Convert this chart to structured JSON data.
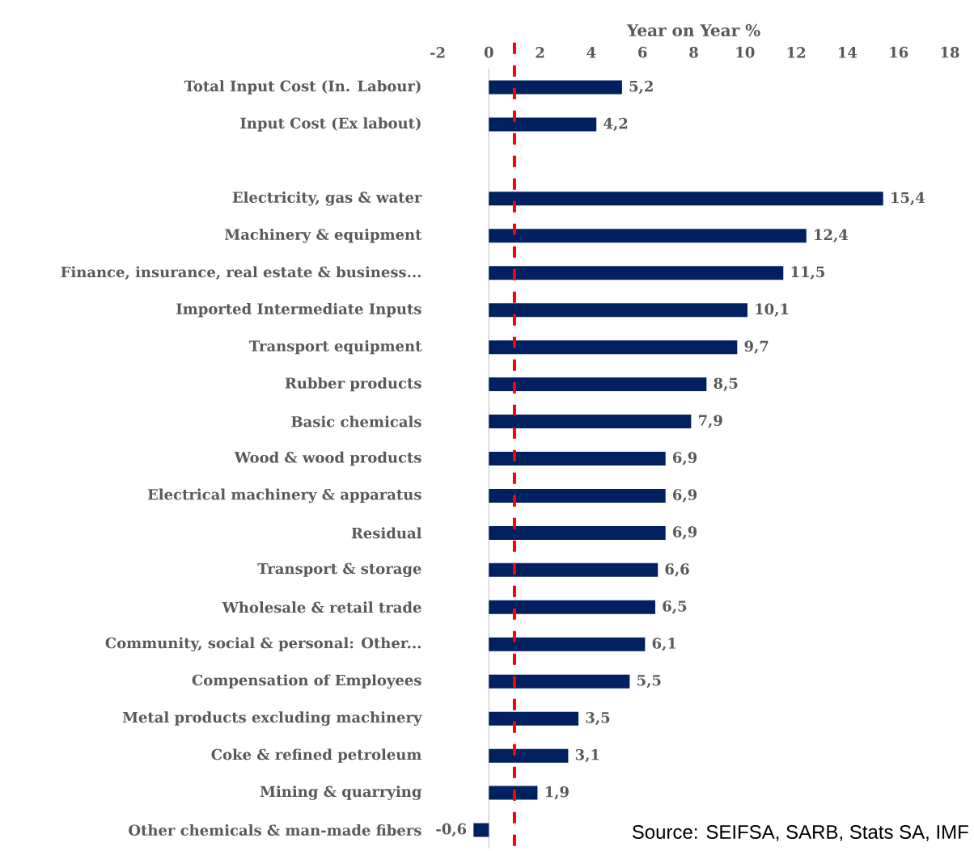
{
  "chart_data": {
    "type": "bar",
    "orientation": "horizontal",
    "xlabel": "Year on Year %",
    "categories": [
      "Total Input Cost (In. Labour)",
      "Input Cost (Ex labout)",
      null,
      "Electricity, gas & water",
      "Machinery & equipment",
      "Finance, insurance, real estate & business...",
      "Imported Intermediate Inputs",
      "Transport equipment",
      "Rubber products",
      "Basic chemicals",
      "Wood & wood products",
      "Electrical machinery & apparatus",
      "Residual",
      "Transport & storage",
      "Wholesale & retail trade",
      "Community, social & personal: Other...",
      "Compensation of Employees",
      "Metal products excluding machinery",
      "Coke & refined petroleum",
      "Mining & quarrying",
      "Other chemicals & man-made fibers"
    ],
    "values": [
      5.2,
      4.2,
      null,
      15.4,
      12.4,
      11.5,
      10.1,
      9.7,
      8.5,
      7.9,
      6.9,
      6.9,
      6.9,
      6.6,
      6.5,
      6.1,
      5.5,
      3.5,
      3.1,
      1.9,
      -0.6
    ],
    "value_labels": [
      "5,2",
      "4,2",
      null,
      "15,4",
      "12,4",
      "11,5",
      "10,1",
      "9,7",
      "8,5",
      "7,9",
      "6,9",
      "6,9",
      "6,9",
      "6,6",
      "6,5",
      "6,1",
      "5,5",
      "3,5",
      "3,1",
      "1,9",
      "-0,6"
    ],
    "color": "#002060",
    "xlim": [
      -2,
      18
    ],
    "xticks": [
      -2,
      0,
      2,
      4,
      6,
      8,
      10,
      12,
      14,
      16,
      18
    ],
    "ref_lines": [
      {
        "axis": "x",
        "value": 1,
        "color": "#ff0000",
        "line_style": "dashed"
      }
    ],
    "annotations": [
      "Source: SEIFSA, SARB, Stats SA, IMF"
    ]
  }
}
